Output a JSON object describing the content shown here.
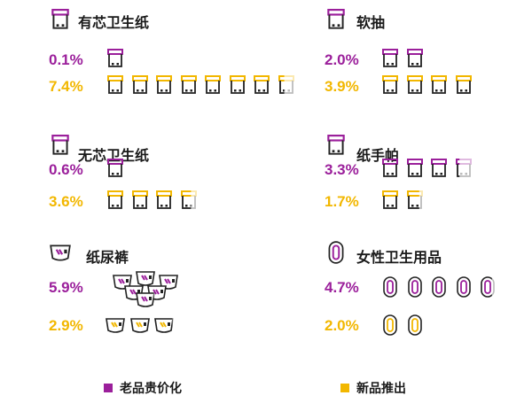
{
  "colors": {
    "purple": "#9b1f9b",
    "yellow": "#f2b700",
    "dark": "#1a1a1a"
  },
  "legend": [
    {
      "label": "老品贵价化",
      "color": "#9b1f9b"
    },
    {
      "label": "新品推出",
      "color": "#f2b700"
    }
  ],
  "chart_data": {
    "type": "pictograph",
    "series": [
      {
        "name": "老品贵价化",
        "color": "#9b1f9b"
      },
      {
        "name": "新品推出",
        "color": "#f2b700"
      }
    ],
    "panels": [
      {
        "title": "有芯卫生纸",
        "icon": "tissue-roll-icon",
        "unit": "toilet-paper",
        "values": [
          0.1,
          7.4
        ],
        "labels": [
          "0.1%",
          "7.4%"
        ]
      },
      {
        "title": "软抽",
        "icon": "tissue-roll-icon",
        "unit": "toilet-paper",
        "values": [
          2.0,
          3.9
        ],
        "labels": [
          "2.0%",
          "3.9%"
        ]
      },
      {
        "title": "无芯卫生纸",
        "icon": "tissue-roll-icon",
        "unit": "toilet-paper",
        "values": [
          0.6,
          3.6
        ],
        "labels": [
          "0.6%",
          "3.6%"
        ]
      },
      {
        "title": "纸手帕",
        "icon": "tissue-roll-icon",
        "unit": "toilet-paper",
        "values": [
          3.3,
          1.7
        ],
        "labels": [
          "3.3%",
          "1.7%"
        ]
      },
      {
        "title": "纸尿裤",
        "icon": "diaper-icon",
        "unit": "diaper",
        "values": [
          5.9,
          2.9
        ],
        "labels": [
          "5.9%",
          "2.9%"
        ]
      },
      {
        "title": "女性卫生用品",
        "icon": "sanitary-pad-icon",
        "unit": "pad",
        "values": [
          4.7,
          2.0
        ],
        "labels": [
          "4.7%",
          "2.0%"
        ]
      }
    ]
  }
}
